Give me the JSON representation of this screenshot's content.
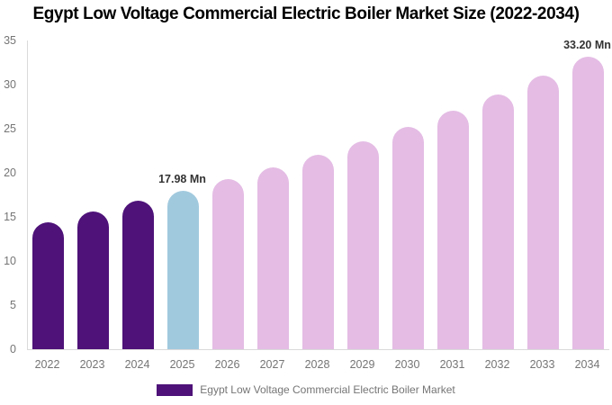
{
  "chart_data": {
    "type": "bar",
    "title": "Egypt Low Voltage Commercial Electric Boiler Market Size (2022-2034)",
    "categories": [
      "2022",
      "2023",
      "2024",
      "2025",
      "2026",
      "2027",
      "2028",
      "2029",
      "2030",
      "2031",
      "2032",
      "2033",
      "2034"
    ],
    "values": [
      14.4,
      15.6,
      16.8,
      17.98,
      19.25,
      20.6,
      22.05,
      23.6,
      25.25,
      27.0,
      28.9,
      31.0,
      33.2
    ],
    "data_labels": [
      null,
      null,
      null,
      "17.98 Mn",
      null,
      null,
      null,
      null,
      null,
      null,
      null,
      null,
      "33.20 Mn"
    ],
    "bar_color_keys": [
      "historical",
      "historical",
      "historical",
      "current",
      "forecast",
      "forecast",
      "forecast",
      "forecast",
      "forecast",
      "forecast",
      "forecast",
      "forecast",
      "forecast"
    ],
    "colors": {
      "historical": "#4E1279",
      "current": "#A1C9DE",
      "forecast": "#E4BCE4",
      "axis_line": "#DADADA",
      "tick_text": "#757575",
      "value_label_text": "#333333",
      "title_text": "#000000"
    },
    "xlabel": "",
    "ylabel": "",
    "ylim": [
      0,
      35
    ],
    "yticks": [
      0,
      5,
      10,
      15,
      20,
      25,
      30,
      35
    ],
    "grid": false,
    "legend": {
      "position": "bottom",
      "label": "Egypt Low Voltage Commercial Electric Boiler Market",
      "swatch_color": "#4E1279"
    }
  }
}
